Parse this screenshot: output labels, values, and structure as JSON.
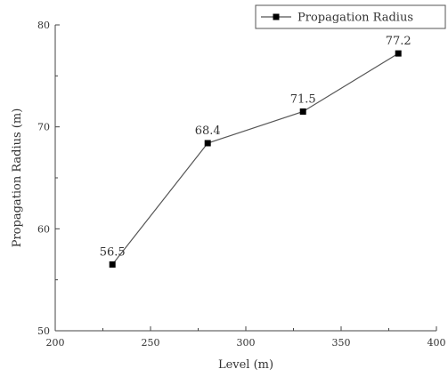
{
  "chart_data": {
    "type": "line",
    "title": "",
    "xlabel": "Level (m)",
    "ylabel": "Propagation Radius (m)",
    "xlim": [
      200,
      400
    ],
    "ylim": [
      50,
      80
    ],
    "xticks": [
      "200",
      "250",
      "300",
      "350",
      "400"
    ],
    "yticks": [
      "50",
      "60",
      "70",
      "80"
    ],
    "x": [
      230,
      280,
      330,
      380
    ],
    "series": [
      {
        "name": "Propagation Radius",
        "values": [
          56.5,
          68.4,
          71.5,
          77.2
        ],
        "labels": [
          "56.5",
          "68.4",
          "71.5",
          "77.2"
        ],
        "color": "#000000",
        "marker": "square"
      }
    ],
    "grid": false,
    "legend": "top-right"
  }
}
